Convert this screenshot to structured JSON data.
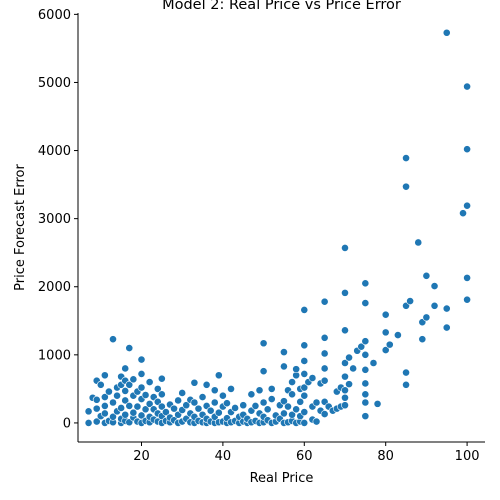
{
  "chart_data": {
    "type": "scatter",
    "title": "Model 2: Real Price vs Price Error",
    "xlabel": "Real Price",
    "ylabel": "Price Forecast Error",
    "xlim": [
      4.4,
      104.4
    ],
    "ylim": [
      -280,
      6020
    ],
    "x_ticks": [
      20,
      40,
      60,
      80,
      100
    ],
    "y_ticks": [
      0,
      1000,
      2000,
      3000,
      4000,
      5000,
      6000
    ],
    "grid": false,
    "marker_color": "#1f77b4",
    "series": [
      {
        "points": [
          [
            7,
            0
          ],
          [
            7,
            170
          ],
          [
            8,
            370
          ],
          [
            9,
            20
          ],
          [
            9,
            210
          ],
          [
            9,
            340
          ],
          [
            9,
            620
          ],
          [
            10,
            100
          ],
          [
            10,
            560
          ],
          [
            11,
            0
          ],
          [
            11,
            140
          ],
          [
            11,
            250
          ],
          [
            11,
            380
          ],
          [
            11,
            700
          ],
          [
            12,
            30
          ],
          [
            12,
            460
          ],
          [
            13,
            10
          ],
          [
            13,
            90
          ],
          [
            13,
            300
          ],
          [
            13,
            1230
          ],
          [
            14,
            170
          ],
          [
            14,
            400
          ],
          [
            14,
            520
          ],
          [
            15,
            0
          ],
          [
            15,
            60
          ],
          [
            15,
            220
          ],
          [
            15,
            560
          ],
          [
            15,
            680
          ],
          [
            16,
            30
          ],
          [
            16,
            120
          ],
          [
            16,
            330
          ],
          [
            16,
            470
          ],
          [
            16,
            620
          ],
          [
            16,
            800
          ],
          [
            17,
            10
          ],
          [
            17,
            250
          ],
          [
            17,
            560
          ],
          [
            17,
            1100
          ],
          [
            18,
            80
          ],
          [
            18,
            150
          ],
          [
            18,
            400
          ],
          [
            18,
            640
          ],
          [
            19,
            20
          ],
          [
            19,
            240
          ],
          [
            19,
            460
          ],
          [
            20,
            0
          ],
          [
            20,
            110
          ],
          [
            20,
            350
          ],
          [
            20,
            520
          ],
          [
            20,
            720
          ],
          [
            20,
            930
          ],
          [
            21,
            30
          ],
          [
            21,
            200
          ],
          [
            21,
            410
          ],
          [
            22,
            10
          ],
          [
            22,
            90
          ],
          [
            22,
            280
          ],
          [
            22,
            600
          ],
          [
            23,
            50
          ],
          [
            23,
            200
          ],
          [
            23,
            380
          ],
          [
            24,
            20
          ],
          [
            24,
            140
          ],
          [
            24,
            310
          ],
          [
            24,
            500
          ],
          [
            25,
            0
          ],
          [
            25,
            100
          ],
          [
            25,
            240
          ],
          [
            25,
            420
          ],
          [
            25,
            650
          ],
          [
            26,
            30
          ],
          [
            26,
            160
          ],
          [
            27,
            10
          ],
          [
            27,
            80
          ],
          [
            27,
            270
          ],
          [
            28,
            40
          ],
          [
            28,
            210
          ],
          [
            29,
            0
          ],
          [
            29,
            120
          ],
          [
            29,
            330
          ],
          [
            30,
            20
          ],
          [
            30,
            190
          ],
          [
            30,
            440
          ],
          [
            31,
            60
          ],
          [
            31,
            260
          ],
          [
            32,
            10
          ],
          [
            32,
            140
          ],
          [
            32,
            340
          ],
          [
            33,
            0
          ],
          [
            33,
            90
          ],
          [
            33,
            300
          ],
          [
            33,
            590
          ],
          [
            34,
            30
          ],
          [
            34,
            210
          ],
          [
            35,
            10
          ],
          [
            35,
            120
          ],
          [
            35,
            380
          ],
          [
            36,
            0
          ],
          [
            36,
            60
          ],
          [
            36,
            250
          ],
          [
            36,
            560
          ],
          [
            37,
            20
          ],
          [
            37,
            180
          ],
          [
            38,
            0
          ],
          [
            38,
            90
          ],
          [
            38,
            300
          ],
          [
            38,
            480
          ],
          [
            39,
            10
          ],
          [
            39,
            150
          ],
          [
            39,
            700
          ],
          [
            40,
            20
          ],
          [
            40,
            240
          ],
          [
            40,
            400
          ],
          [
            41,
            0
          ],
          [
            41,
            70
          ],
          [
            41,
            290
          ],
          [
            42,
            10
          ],
          [
            42,
            160
          ],
          [
            42,
            500
          ],
          [
            43,
            30
          ],
          [
            43,
            220
          ],
          [
            44,
            0
          ],
          [
            44,
            90
          ],
          [
            45,
            20
          ],
          [
            45,
            120
          ],
          [
            45,
            260
          ],
          [
            46,
            0
          ],
          [
            46,
            60
          ],
          [
            47,
            10
          ],
          [
            47,
            180
          ],
          [
            47,
            420
          ],
          [
            48,
            30
          ],
          [
            48,
            250
          ],
          [
            49,
            0
          ],
          [
            49,
            140
          ],
          [
            49,
            480
          ],
          [
            50,
            10
          ],
          [
            50,
            90
          ],
          [
            50,
            300
          ],
          [
            50,
            760
          ],
          [
            50,
            1170
          ],
          [
            51,
            40
          ],
          [
            51,
            200
          ],
          [
            52,
            0
          ],
          [
            52,
            350
          ],
          [
            52,
            500
          ],
          [
            53,
            20
          ],
          [
            53,
            110
          ],
          [
            54,
            60
          ],
          [
            54,
            260
          ],
          [
            55,
            0
          ],
          [
            55,
            140
          ],
          [
            55,
            320
          ],
          [
            55,
            830
          ],
          [
            55,
            1040
          ],
          [
            56,
            10
          ],
          [
            56,
            240
          ],
          [
            56,
            480
          ],
          [
            57,
            30
          ],
          [
            57,
            120
          ],
          [
            57,
            420
          ],
          [
            57,
            600
          ],
          [
            58,
            0
          ],
          [
            58,
            200
          ],
          [
            58,
            700
          ],
          [
            58,
            790
          ],
          [
            59,
            20
          ],
          [
            59,
            100
          ],
          [
            59,
            310
          ],
          [
            59,
            500
          ],
          [
            60,
            0
          ],
          [
            60,
            160
          ],
          [
            60,
            400
          ],
          [
            60,
            520
          ],
          [
            60,
            720
          ],
          [
            60,
            910
          ],
          [
            60,
            1140
          ],
          [
            60,
            1660
          ],
          [
            61,
            600
          ],
          [
            62,
            50
          ],
          [
            62,
            240
          ],
          [
            62,
            660
          ],
          [
            63,
            20
          ],
          [
            63,
            300
          ],
          [
            64,
            180
          ],
          [
            64,
            580
          ],
          [
            65,
            130
          ],
          [
            65,
            310
          ],
          [
            65,
            620
          ],
          [
            65,
            800
          ],
          [
            65,
            1020
          ],
          [
            65,
            1250
          ],
          [
            65,
            1780
          ],
          [
            66,
            240
          ],
          [
            67,
            180
          ],
          [
            68,
            210
          ],
          [
            68,
            460
          ],
          [
            69,
            240
          ],
          [
            69,
            520
          ],
          [
            70,
            260
          ],
          [
            70,
            370
          ],
          [
            70,
            480
          ],
          [
            70,
            680
          ],
          [
            70,
            880
          ],
          [
            70,
            1360
          ],
          [
            70,
            1910
          ],
          [
            70,
            2570
          ],
          [
            71,
            570
          ],
          [
            71,
            960
          ],
          [
            72,
            800
          ],
          [
            73,
            1060
          ],
          [
            74,
            1120
          ],
          [
            75,
            100
          ],
          [
            75,
            300
          ],
          [
            75,
            420
          ],
          [
            75,
            580
          ],
          [
            75,
            780
          ],
          [
            75,
            1000
          ],
          [
            75,
            1200
          ],
          [
            75,
            1760
          ],
          [
            75,
            2050
          ],
          [
            77,
            880
          ],
          [
            78,
            280
          ],
          [
            80,
            1070
          ],
          [
            80,
            1330
          ],
          [
            80,
            1590
          ],
          [
            81,
            1150
          ],
          [
            83,
            1290
          ],
          [
            85,
            560
          ],
          [
            85,
            740
          ],
          [
            85,
            1720
          ],
          [
            85,
            3470
          ],
          [
            85,
            3890
          ],
          [
            86,
            1790
          ],
          [
            88,
            2650
          ],
          [
            89,
            1230
          ],
          [
            89,
            1480
          ],
          [
            90,
            1550
          ],
          [
            90,
            2160
          ],
          [
            92,
            1720
          ],
          [
            92,
            2010
          ],
          [
            95,
            1400
          ],
          [
            95,
            1680
          ],
          [
            95,
            5730
          ],
          [
            99,
            3080
          ],
          [
            100,
            1810
          ],
          [
            100,
            2130
          ],
          [
            100,
            3190
          ],
          [
            100,
            4020
          ],
          [
            100,
            4940
          ]
        ]
      }
    ]
  }
}
